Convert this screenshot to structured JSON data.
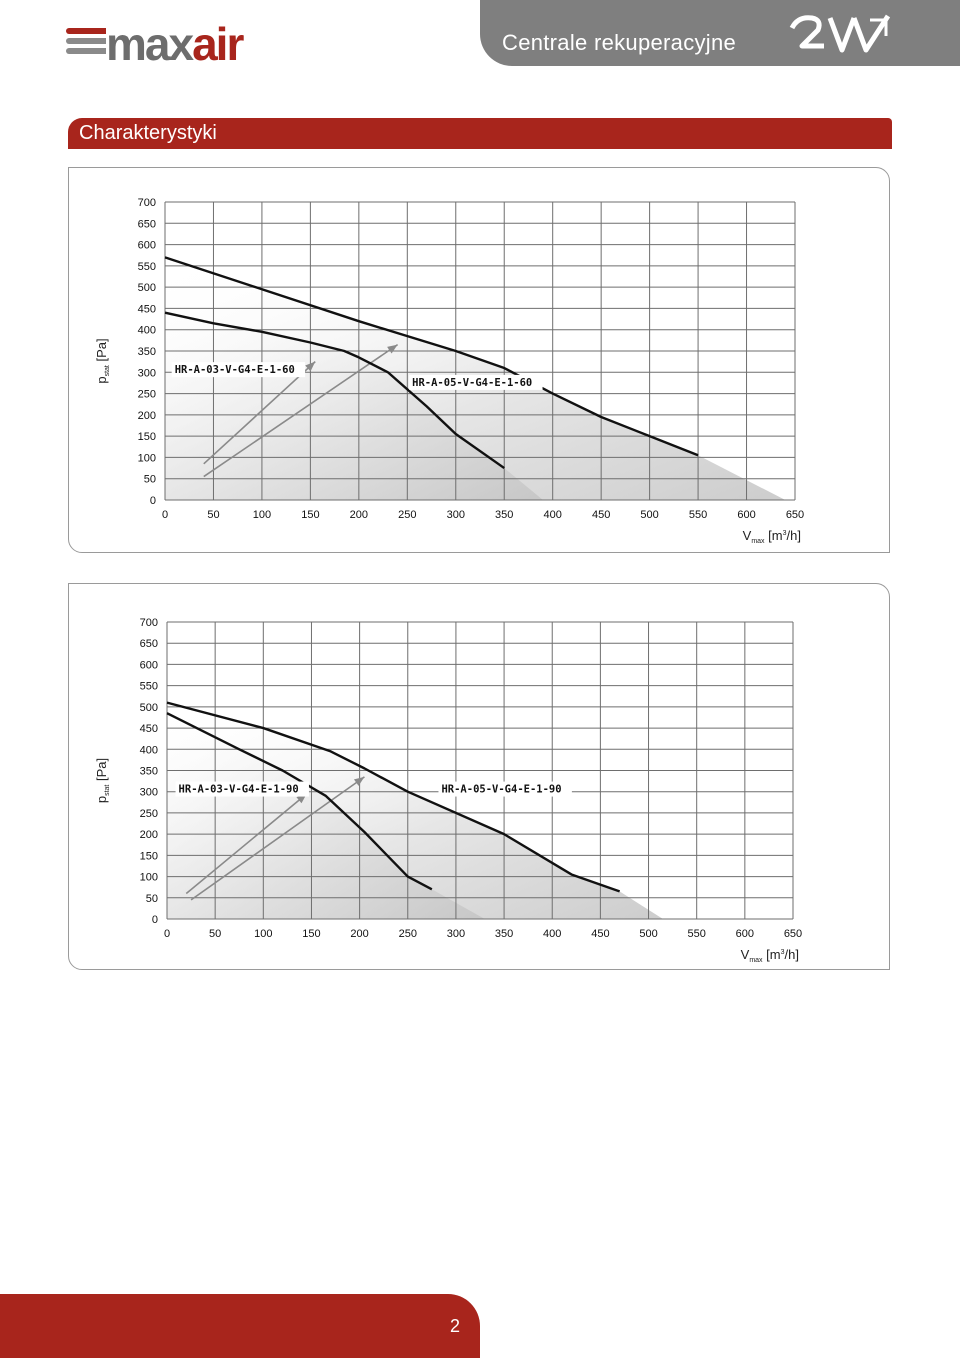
{
  "header": {
    "logo": {
      "text_max": "max",
      "text_air": "air"
    },
    "title": "Centrale rekuperacyjne",
    "brand_logo": "2VV"
  },
  "section": {
    "title": "Charakterystyki"
  },
  "footer": {
    "page_number": "2"
  },
  "colors": {
    "accent": "#a8251c",
    "header_gray": "#7f7f7f",
    "curve": "#111111",
    "arrow": "#8a8a8a",
    "fill": "#cfcfcf"
  },
  "chart_data": [
    {
      "type": "line",
      "ylabel": "p",
      "ylabel_sub": "stat",
      "ylabel_unit": "[Pa]",
      "xlabel": "V",
      "xlabel_sub": "max",
      "xlabel_unit_pre": "[m",
      "xlabel_unit_sup": "3",
      "xlabel_unit_post": "/h]",
      "xlim": [
        0,
        650
      ],
      "ylim": [
        0,
        700
      ],
      "xticks": [
        "0",
        "50",
        "100",
        "150",
        "200",
        "250",
        "300",
        "350",
        "400",
        "450",
        "500",
        "550",
        "600",
        "650"
      ],
      "yticks": [
        "700",
        "650",
        "600",
        "550",
        "500",
        "450",
        "400",
        "350",
        "300",
        "250",
        "200",
        "150",
        "100",
        "50",
        "0"
      ],
      "series": [
        {
          "name": "HR-A-03-V-G4-E-1-60",
          "x": [
            0,
            50,
            100,
            150,
            185,
            200,
            230,
            270,
            300,
            350
          ],
          "y": [
            440,
            415,
            395,
            370,
            350,
            335,
            300,
            220,
            155,
            75
          ],
          "fill_end": [
            390,
            0
          ]
        },
        {
          "name": "HR-A-05-V-G4-E-1-60",
          "x": [
            0,
            100,
            200,
            300,
            350,
            400,
            450,
            500,
            550
          ],
          "y": [
            570,
            495,
            420,
            350,
            310,
            250,
            195,
            150,
            105
          ],
          "fill_end": [
            640,
            0
          ]
        }
      ],
      "labels": [
        {
          "text": "HR-A-03-V-G4-E-1-60",
          "x": 10,
          "y": 298
        },
        {
          "text": "HR-A-05-V-G4-E-1-60",
          "x": 255,
          "y": 268
        }
      ],
      "arrows": [
        {
          "from": [
            40,
            85
          ],
          "to": [
            155,
            325
          ]
        },
        {
          "from": [
            40,
            55
          ],
          "to": [
            240,
            365
          ]
        }
      ]
    },
    {
      "type": "line",
      "ylabel": "p",
      "ylabel_sub": "stat",
      "ylabel_unit": "[Pa]",
      "xlabel": "V",
      "xlabel_sub": "max",
      "xlabel_unit_pre": "[m",
      "xlabel_unit_sup": "3",
      "xlabel_unit_post": "/h]",
      "xlim": [
        0,
        650
      ],
      "ylim": [
        0,
        700
      ],
      "xticks": [
        "0",
        "50",
        "100",
        "150",
        "200",
        "250",
        "300",
        "350",
        "400",
        "450",
        "500",
        "550",
        "600",
        "650"
      ],
      "yticks": [
        "700",
        "650",
        "600",
        "550",
        "500",
        "450",
        "400",
        "350",
        "300",
        "250",
        "200",
        "150",
        "100",
        "50",
        "0"
      ],
      "series": [
        {
          "name": "HR-A-03-V-G4-E-1-90",
          "x": [
            0,
            75,
            120,
            165,
            205,
            250,
            275
          ],
          "y": [
            485,
            400,
            350,
            290,
            205,
            100,
            70
          ],
          "fill_end": [
            330,
            0
          ]
        },
        {
          "name": "HR-A-05-V-G4-E-1-90",
          "x": [
            0,
            100,
            170,
            205,
            250,
            350,
            420,
            470
          ],
          "y": [
            510,
            450,
            395,
            355,
            300,
            200,
            105,
            65
          ],
          "fill_end": [
            515,
            0
          ]
        }
      ],
      "labels": [
        {
          "text": "HR-A-03-V-G4-E-1-90",
          "x": 12,
          "y": 298
        },
        {
          "text": "HR-A-05-V-G4-E-1-90",
          "x": 285,
          "y": 298
        }
      ],
      "arrows": [
        {
          "from": [
            20,
            60
          ],
          "to": [
            145,
            295
          ]
        },
        {
          "from": [
            25,
            45
          ],
          "to": [
            205,
            335
          ]
        }
      ]
    }
  ]
}
